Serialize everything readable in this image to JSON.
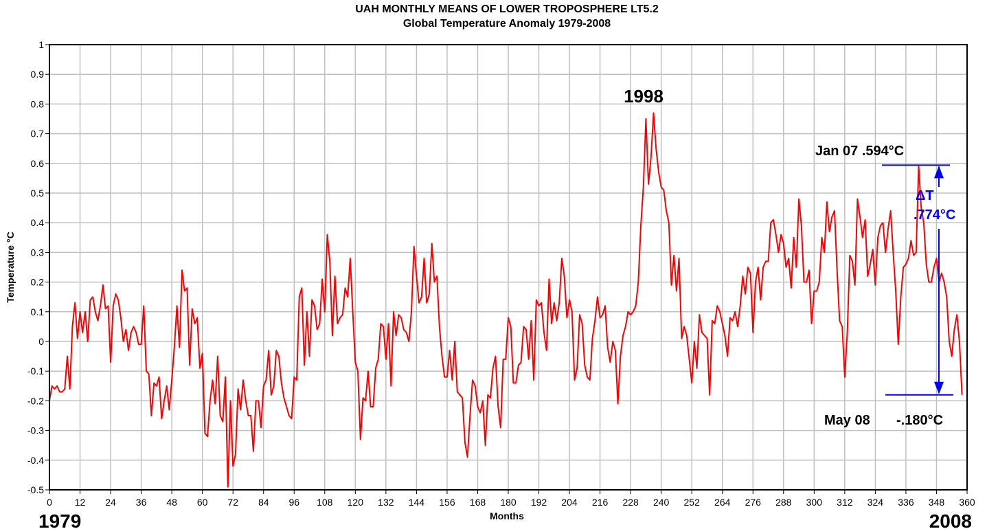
{
  "chart_data": {
    "type": "line",
    "title": "UAH MONTHLY MEANS OF LOWER TROPOSPHERE LT5.2",
    "subtitle": "Global Temperature Anomaly 1979-2008",
    "xlabel": "Months",
    "ylabel": "Temperature °C",
    "xlim": [
      0,
      360
    ],
    "ylim": [
      -0.5,
      1.0
    ],
    "grid": true,
    "x_ticks": [
      0,
      12,
      24,
      36,
      48,
      60,
      72,
      84,
      96,
      108,
      120,
      132,
      144,
      156,
      168,
      180,
      192,
      204,
      216,
      228,
      240,
      252,
      264,
      276,
      288,
      300,
      312,
      324,
      336,
      348,
      360
    ],
    "y_ticks": [
      -0.5,
      -0.4,
      -0.3,
      -0.2,
      -0.1,
      0,
      0.1,
      0.2,
      0.3,
      0.4,
      0.5,
      0.6,
      0.7,
      0.8,
      0.9,
      1
    ],
    "y_tick_labels": [
      "-0.5",
      "-0.4",
      "-0.3",
      "-0.2",
      "-0.1",
      "0",
      "0.1",
      "0.2",
      "0.3",
      "0.4",
      "0.5",
      "0.6",
      "0.7",
      "0.8",
      "0.9",
      "1"
    ],
    "start_year_label": "1979",
    "end_year_label": "2008",
    "line_color": "#ff0000",
    "annotation_color": "#0000ff",
    "annotations": {
      "peak_label": "1998",
      "high_label": "Jan 07 .594°C",
      "high_value": 0.594,
      "low_month_label": "May 08",
      "low_value_label": "-.180°C",
      "low_value": -0.18,
      "delta_symbol": "ΔT",
      "delta_value": ".774°C"
    },
    "series": [
      {
        "values": [
          -0.2,
          -0.15,
          -0.16,
          -0.15,
          -0.17,
          -0.17,
          -0.16,
          -0.05,
          -0.16,
          0.05,
          0.13,
          0.01,
          0.1,
          0.03,
          0.1,
          0.0,
          0.14,
          0.15,
          0.1,
          0.07,
          0.12,
          0.19,
          0.11,
          0.12,
          -0.07,
          0.12,
          0.16,
          0.14,
          0.08,
          0.0,
          0.04,
          -0.03,
          0.03,
          0.05,
          0.03,
          -0.01,
          -0.01,
          0.12,
          -0.1,
          -0.11,
          -0.25,
          -0.14,
          -0.15,
          -0.12,
          -0.26,
          -0.2,
          -0.15,
          -0.23,
          -0.13,
          -0.02,
          0.12,
          -0.02,
          0.24,
          0.17,
          0.18,
          -0.08,
          0.11,
          0.06,
          0.08,
          -0.09,
          -0.04,
          -0.31,
          -0.32,
          -0.2,
          -0.13,
          -0.21,
          -0.05,
          -0.25,
          -0.27,
          -0.12,
          -0.49,
          -0.2,
          -0.42,
          -0.38,
          -0.16,
          -0.23,
          -0.13,
          -0.2,
          -0.25,
          -0.25,
          -0.37,
          -0.2,
          -0.2,
          -0.29,
          -0.15,
          -0.13,
          -0.03,
          -0.18,
          -0.15,
          -0.03,
          -0.05,
          -0.14,
          -0.19,
          -0.22,
          -0.25,
          -0.26,
          -0.12,
          -0.13,
          0.15,
          0.18,
          -0.08,
          0.1,
          -0.05,
          0.14,
          0.12,
          0.04,
          0.06,
          0.21,
          0.1,
          0.36,
          0.27,
          0.02,
          0.22,
          0.06,
          0.08,
          0.09,
          0.18,
          0.15,
          0.28,
          0.1,
          -0.07,
          -0.1,
          -0.33,
          -0.19,
          -0.2,
          -0.1,
          -0.22,
          -0.22,
          -0.09,
          -0.06,
          0.06,
          0.05,
          -0.06,
          0.06,
          -0.15,
          0.1,
          0.02,
          0.09,
          0.08,
          0.04,
          0.03,
          0.0,
          0.1,
          0.32,
          0.22,
          0.13,
          0.15,
          0.28,
          0.13,
          0.16,
          0.33,
          0.2,
          0.22,
          0.05,
          -0.05,
          -0.12,
          -0.12,
          -0.03,
          -0.13,
          0.0,
          -0.17,
          -0.18,
          -0.19,
          -0.34,
          -0.39,
          -0.25,
          -0.13,
          -0.15,
          -0.22,
          -0.24,
          -0.2,
          -0.35,
          -0.18,
          -0.19,
          -0.09,
          -0.05,
          -0.22,
          -0.29,
          -0.06,
          -0.06,
          0.08,
          0.05,
          -0.14,
          -0.14,
          -0.08,
          -0.07,
          0.05,
          0.04,
          -0.06,
          0.07,
          -0.13,
          0.14,
          0.12,
          0.13,
          0.03,
          -0.03,
          0.21,
          0.06,
          0.13,
          0.07,
          0.13,
          0.28,
          0.22,
          0.08,
          0.14,
          0.1,
          -0.13,
          -0.09,
          0.09,
          0.06,
          -0.08,
          -0.12,
          -0.13,
          0.01,
          0.07,
          0.15,
          0.08,
          0.09,
          0.12,
          -0.02,
          -0.07,
          0.0,
          -0.03,
          -0.21,
          -0.05,
          0.02,
          0.05,
          0.1,
          0.09,
          0.1,
          0.12,
          0.2,
          0.39,
          0.52,
          0.75,
          0.53,
          0.62,
          0.77,
          0.65,
          0.57,
          0.52,
          0.51,
          0.44,
          0.4,
          0.19,
          0.29,
          0.17,
          0.28,
          0.01,
          0.05,
          0.02,
          -0.06,
          -0.14,
          0.0,
          -0.09,
          0.09,
          0.03,
          0.02,
          0.01,
          -0.18,
          0.07,
          0.06,
          0.12,
          0.1,
          0.06,
          0.02,
          -0.05,
          0.08,
          0.07,
          0.1,
          0.05,
          0.12,
          0.22,
          0.16,
          0.25,
          0.23,
          0.03,
          0.2,
          0.25,
          0.14,
          0.25,
          0.27,
          0.27,
          0.4,
          0.41,
          0.36,
          0.3,
          0.36,
          0.33,
          0.25,
          0.28,
          0.18,
          0.35,
          0.25,
          0.48,
          0.39,
          0.2,
          0.2,
          0.24,
          0.06,
          0.17,
          0.17,
          0.2,
          0.35,
          0.3,
          0.47,
          0.37,
          0.42,
          0.44,
          0.24,
          0.07,
          0.05,
          -0.12,
          0.03,
          0.29,
          0.27,
          0.19,
          0.48,
          0.42,
          0.35,
          0.41,
          0.22,
          0.26,
          0.31,
          0.19,
          0.35,
          0.39,
          0.4,
          0.3,
          0.38,
          0.44,
          0.3,
          0.17,
          -0.01,
          0.15,
          0.25,
          0.26,
          0.28,
          0.34,
          0.29,
          0.3,
          0.59,
          0.45,
          0.4,
          0.26,
          0.2,
          0.2,
          0.25,
          0.28,
          0.2,
          0.23,
          0.2,
          0.15,
          0.0,
          -0.05,
          0.04,
          0.09,
          0.0,
          -0.18
        ]
      }
    ]
  }
}
